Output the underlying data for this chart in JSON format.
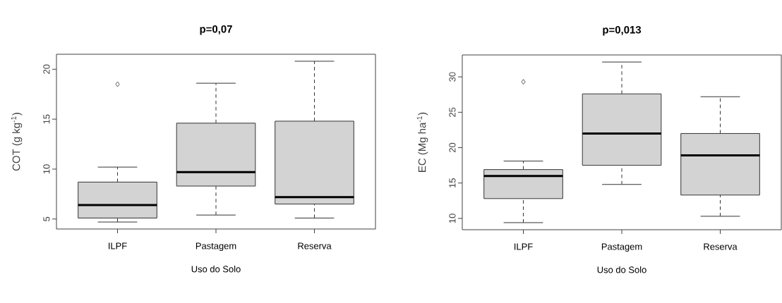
{
  "chart_data": [
    {
      "type": "box",
      "title": "p=0,07",
      "xlabel": "Uso do Solo",
      "ylabel": "COT (g kg$^{-1}$)",
      "categories": [
        "ILPF",
        "Pastagem",
        "Reserva"
      ],
      "color": "#d3d3d3",
      "ylim": [
        4.0,
        21.5
      ],
      "yticks": [
        5,
        10,
        15,
        20
      ],
      "boxes": [
        {
          "low": 4.7,
          "q1": 5.1,
          "median": 6.4,
          "q3": 8.7,
          "high": 10.2,
          "outliers": [
            18.5
          ]
        },
        {
          "low": 5.4,
          "q1": 8.3,
          "median": 9.7,
          "q3": 14.6,
          "high": 18.6
        },
        {
          "low": 5.1,
          "q1": 6.5,
          "median": 7.2,
          "q3": 14.8,
          "high": 20.8
        }
      ]
    },
    {
      "type": "box",
      "title": "p=0,013",
      "xlabel": "Uso do Solo",
      "ylabel": "EC (Mg ha$^{-1}$)",
      "categories": [
        "ILPF",
        "Pastagem",
        "Reserva"
      ],
      "color": "#d3d3d3",
      "ylim": [
        8.4,
        33.1
      ],
      "yticks": [
        10,
        15,
        20,
        25,
        30
      ],
      "boxes": [
        {
          "low": 9.4,
          "q1": 12.8,
          "median": 16.0,
          "q3": 16.9,
          "high": 18.1,
          "outliers": [
            29.3
          ]
        },
        {
          "low": 14.8,
          "q1": 17.5,
          "median": 22.0,
          "q3": 27.6,
          "high": 32.1
        },
        {
          "low": 10.3,
          "q1": 13.3,
          "median": 18.9,
          "q3": 22.0,
          "high": 27.2
        }
      ]
    }
  ]
}
